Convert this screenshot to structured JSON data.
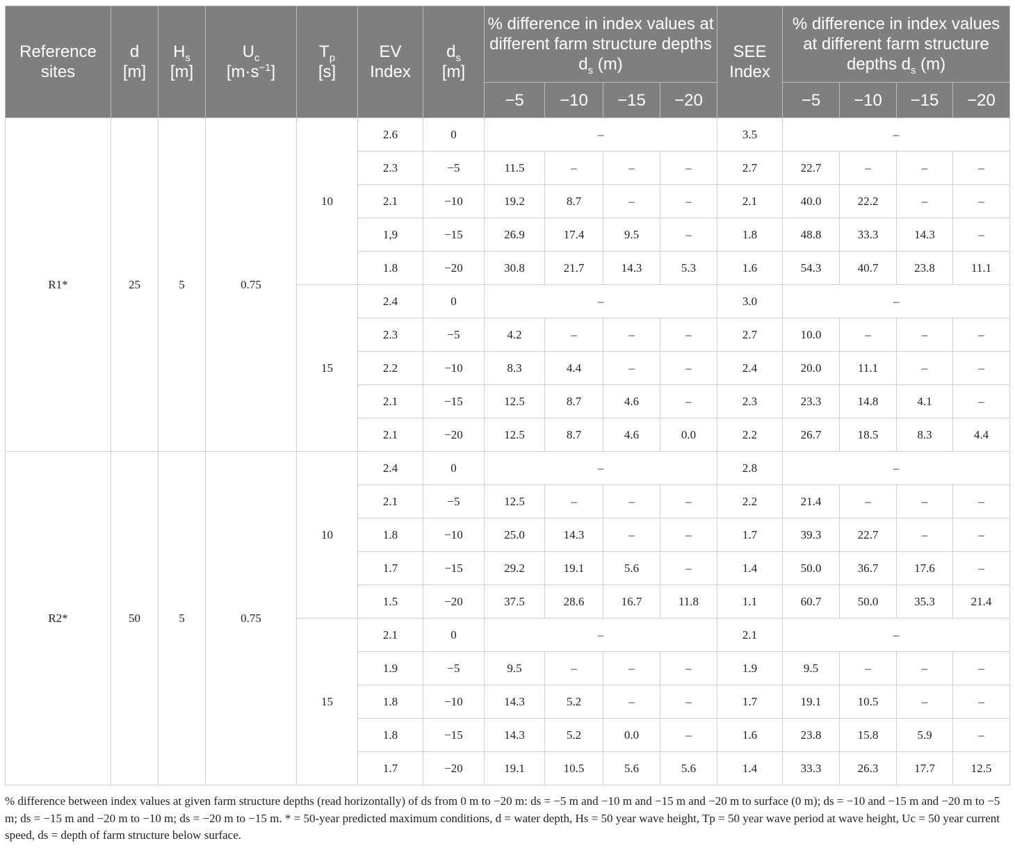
{
  "header": {
    "reference_sites": "Reference sites",
    "d_label": "d",
    "d_unit": "[m]",
    "hs_main": "H",
    "hs_sub": "s",
    "hs_unit": "[m]",
    "uc_main": "U",
    "uc_sub": "c",
    "uc_unit_a": "[m·s",
    "uc_unit_sup": "−1",
    "uc_unit_b": "]",
    "tp_main": "T",
    "tp_sub": "p",
    "tp_unit": "[s]",
    "ev_index": "EV Index",
    "ds_main": "d",
    "ds_sub": "s",
    "ds_unit": "[m]",
    "diff_a": "% difference in index values at different farm structure depths d",
    "diff_sub": "s",
    "diff_b": " (m)",
    "see_index": "SEE Index",
    "depth_cols": [
      "−5",
      "−10",
      "−15",
      "−20"
    ]
  },
  "groups": [
    {
      "site": "R1*",
      "d": "25",
      "hs": "5",
      "uc": "0.75",
      "blocks": [
        {
          "tp": "10",
          "rows": [
            {
              "ev": "2.6",
              "ds": "0",
              "ev_diff": [
                "–"
              ],
              "see": "3.5",
              "see_diff": [
                "–"
              ]
            },
            {
              "ev": "2.3",
              "ds": "−5",
              "ev_diff": [
                "11.5",
                "–",
                "–",
                "–"
              ],
              "see": "2.7",
              "see_diff": [
                "22.7",
                "–",
                "–",
                "–"
              ]
            },
            {
              "ev": "2.1",
              "ds": "−10",
              "ev_diff": [
                "19.2",
                "8.7",
                "–",
                "–"
              ],
              "see": "2.1",
              "see_diff": [
                "40.0",
                "22.2",
                "–",
                "–"
              ]
            },
            {
              "ev": "1,9",
              "ds": "−15",
              "ev_diff": [
                "26.9",
                "17.4",
                "9.5",
                "–"
              ],
              "see": "1.8",
              "see_diff": [
                "48.8",
                "33.3",
                "14.3",
                "–"
              ]
            },
            {
              "ev": "1.8",
              "ds": "−20",
              "ev_diff": [
                "30.8",
                "21.7",
                "14.3",
                "5.3"
              ],
              "see": "1.6",
              "see_diff": [
                "54.3",
                "40.7",
                "23.8",
                "11.1"
              ]
            }
          ]
        },
        {
          "tp": "15",
          "rows": [
            {
              "ev": "2.4",
              "ds": "0",
              "ev_diff": [
                "–"
              ],
              "see": "3.0",
              "see_diff": [
                "–"
              ]
            },
            {
              "ev": "2.3",
              "ds": "−5",
              "ev_diff": [
                "4.2",
                "–",
                "–",
                "–"
              ],
              "see": "2.7",
              "see_diff": [
                "10.0",
                "–",
                "–",
                "–"
              ]
            },
            {
              "ev": "2.2",
              "ds": "−10",
              "ev_diff": [
                "8.3",
                "4.4",
                "–",
                "–"
              ],
              "see": "2.4",
              "see_diff": [
                "20.0",
                "11.1",
                "–",
                "–"
              ]
            },
            {
              "ev": "2.1",
              "ds": "−15",
              "ev_diff": [
                "12.5",
                "8.7",
                "4.6",
                "–"
              ],
              "see": "2.3",
              "see_diff": [
                "23.3",
                "14.8",
                "4.1",
                "–"
              ]
            },
            {
              "ev": "2.1",
              "ds": "−20",
              "ev_diff": [
                "12.5",
                "8.7",
                "4.6",
                "0.0"
              ],
              "see": "2.2",
              "see_diff": [
                "26.7",
                "18.5",
                "8.3",
                "4.4"
              ]
            }
          ]
        }
      ]
    },
    {
      "site": "R2*",
      "d": "50",
      "hs": "5",
      "uc": "0.75",
      "blocks": [
        {
          "tp": "10",
          "rows": [
            {
              "ev": "2.4",
              "ds": "0",
              "ev_diff": [
                "–"
              ],
              "see": "2.8",
              "see_diff": [
                "–"
              ]
            },
            {
              "ev": "2.1",
              "ds": "−5",
              "ev_diff": [
                "12.5",
                "–",
                "–",
                "–"
              ],
              "see": "2.2",
              "see_diff": [
                "21.4",
                "–",
                "–",
                "–"
              ]
            },
            {
              "ev": "1.8",
              "ds": "−10",
              "ev_diff": [
                "25.0",
                "14.3",
                "–",
                "–"
              ],
              "see": "1.7",
              "see_diff": [
                "39.3",
                "22.7",
                "–",
                "–"
              ]
            },
            {
              "ev": "1.7",
              "ds": "−15",
              "ev_diff": [
                "29.2",
                "19.1",
                "5.6",
                "–"
              ],
              "see": "1.4",
              "see_diff": [
                "50.0",
                "36.7",
                "17.6",
                "–"
              ]
            },
            {
              "ev": "1.5",
              "ds": "−20",
              "ev_diff": [
                "37.5",
                "28.6",
                "16.7",
                "11.8"
              ],
              "see": "1.1",
              "see_diff": [
                "60.7",
                "50.0",
                "35.3",
                "21.4"
              ]
            }
          ]
        },
        {
          "tp": "15",
          "rows": [
            {
              "ev": "2.1",
              "ds": "0",
              "ev_diff": [
                "–"
              ],
              "see": "2.1",
              "see_diff": [
                "–"
              ]
            },
            {
              "ev": "1.9",
              "ds": "−5",
              "ev_diff": [
                "9.5",
                "–",
                "–",
                "–"
              ],
              "see": "1.9",
              "see_diff": [
                "9.5",
                "–",
                "–",
                "–"
              ]
            },
            {
              "ev": "1.8",
              "ds": "−10",
              "ev_diff": [
                "14.3",
                "5.2",
                "–",
                "–"
              ],
              "see": "1.7",
              "see_diff": [
                "19.1",
                "10.5",
                "–",
                "–"
              ]
            },
            {
              "ev": "1.8",
              "ds": "−15",
              "ev_diff": [
                "14.3",
                "5.2",
                "0.0",
                "–"
              ],
              "see": "1.6",
              "see_diff": [
                "23.8",
                "15.8",
                "5.9",
                "–"
              ]
            },
            {
              "ev": "1.7",
              "ds": "−20",
              "ev_diff": [
                "19.1",
                "10.5",
                "5.6",
                "5.6"
              ],
              "see": "1.4",
              "see_diff": [
                "33.3",
                "26.3",
                "17.7",
                "12.5"
              ]
            }
          ]
        }
      ]
    }
  ],
  "footnote": "% difference between index values at given farm structure depths (read horizontally) of ds from 0 m to −20 m: ds = −5 m and −10 m and −15 m and −20 m to surface (0 m); ds = −10 and −15 m and −20 m to −5 m; ds = −15 m and −20 m to −10 m; ds = −20 m to −15 m. * = 50-year predicted maximum conditions, d = water depth, Hs = 50 year wave height, Tp = 50 year wave period at wave height, Uc = 50 year current speed, ds = depth of farm structure below surface."
}
